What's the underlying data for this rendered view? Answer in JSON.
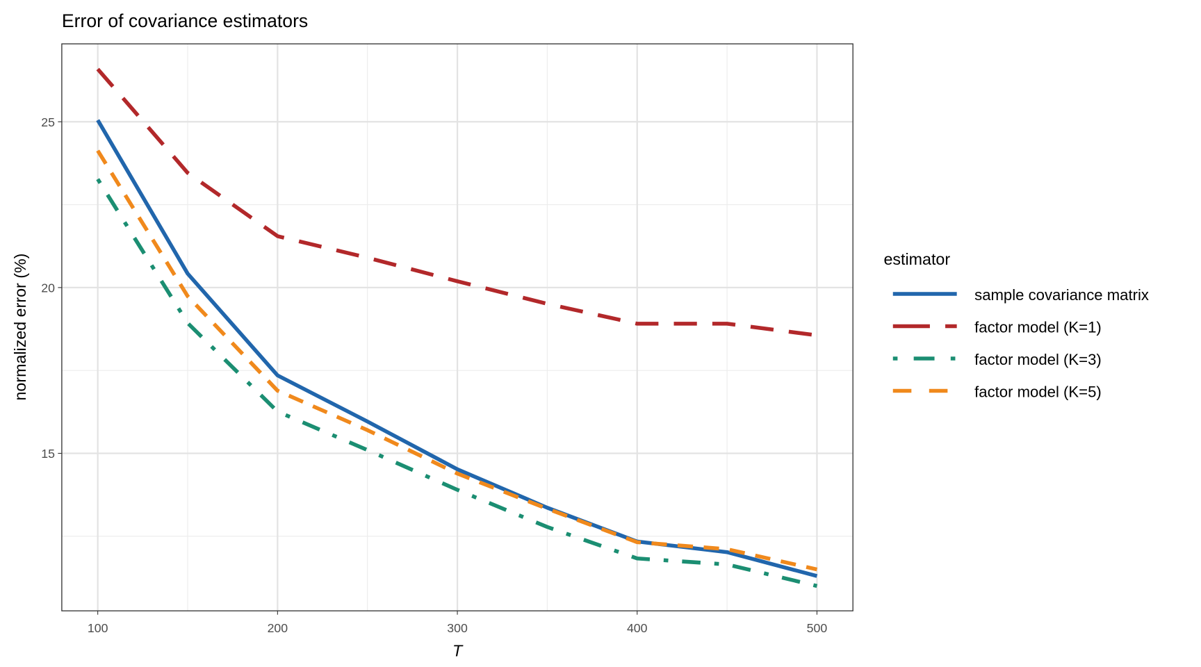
{
  "chart_data": {
    "type": "line",
    "title": "Error of covariance estimators",
    "xlabel": "T",
    "ylabel": "normalized error (%)",
    "x": [
      100,
      150,
      200,
      250,
      300,
      350,
      400,
      450,
      500
    ],
    "xlim": [
      80,
      520
    ],
    "ylim": [
      10.25,
      27.35
    ],
    "x_ticks": [
      100,
      200,
      300,
      400,
      500
    ],
    "y_ticks": [
      15,
      20,
      25
    ],
    "grid": true,
    "legend_title": "estimator",
    "legend_position": "right",
    "series": [
      {
        "name": "sample covariance matrix",
        "color": "#2166ac",
        "dash": "solid",
        "values": [
          25.05,
          20.42,
          17.35,
          15.96,
          14.52,
          13.36,
          12.34,
          12.02,
          11.3
        ]
      },
      {
        "name": "factor model (K=1)",
        "color": "#b2282a",
        "dash": "longdash",
        "values": [
          26.59,
          23.46,
          21.55,
          20.9,
          20.19,
          19.51,
          18.91,
          18.91,
          18.56
        ]
      },
      {
        "name": "factor model (K=3)",
        "color": "#1b8e72",
        "dash": "dotdash",
        "values": [
          23.27,
          18.93,
          16.26,
          15.1,
          13.9,
          12.78,
          11.83,
          11.65,
          11.0
        ]
      },
      {
        "name": "factor model (K=5)",
        "color": "#f0891c",
        "dash": "dashed",
        "values": [
          24.13,
          19.74,
          16.89,
          15.7,
          14.39,
          13.33,
          12.32,
          12.11,
          11.5
        ]
      }
    ]
  }
}
